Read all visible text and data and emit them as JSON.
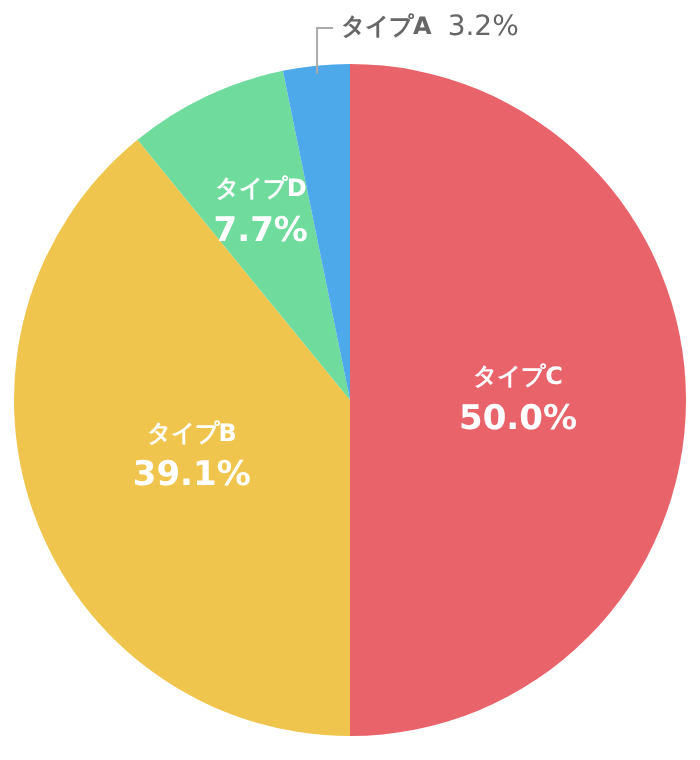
{
  "chart_data": {
    "type": "pie",
    "categories": [
      "タイプC",
      "タイプB",
      "タイプD",
      "タイプA"
    ],
    "values": [
      50.0,
      39.1,
      7.7,
      3.2
    ],
    "colors": [
      "#e9636b",
      "#f0c54e",
      "#6fdb9c",
      "#4ea9ea"
    ],
    "value_labels": [
      "50.0%",
      "39.1%",
      "7.7%",
      "3.2%"
    ],
    "legend": false
  }
}
